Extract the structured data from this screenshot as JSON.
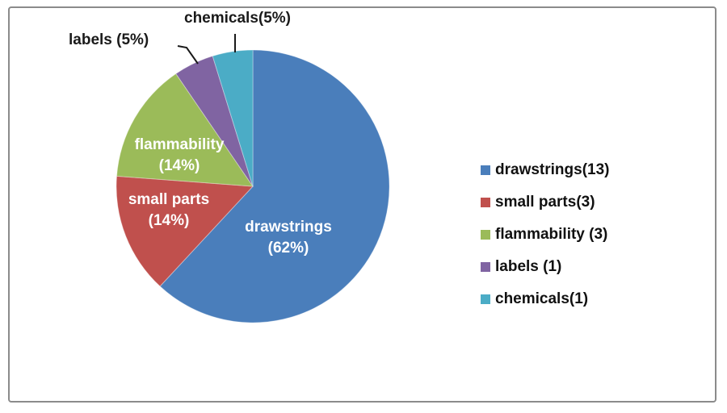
{
  "chart_data": {
    "type": "pie",
    "title": "",
    "categories": [
      "drawstrings",
      "small parts",
      "flammability",
      "labels",
      "chemicals"
    ],
    "values": [
      13,
      3,
      3,
      1,
      1
    ],
    "percentages": [
      62,
      14,
      14,
      5,
      5
    ],
    "colors": [
      "#4A7EBB",
      "#C0504D",
      "#9BBB59",
      "#8064A2",
      "#4BACC6"
    ],
    "start_angle_deg": 0,
    "direction": "clockwise",
    "legend_position": "right"
  },
  "slice_labels": {
    "flammability": {
      "name": "flammability",
      "pct": "(14%)"
    },
    "small_parts": {
      "name": "small parts",
      "pct": "(14%)"
    },
    "drawstrings": {
      "name": "drawstrings",
      "pct": "(62%)"
    }
  },
  "callouts": {
    "labels": "labels (5%)",
    "chemicals": "chemicals(5%)"
  },
  "legend": {
    "items": [
      {
        "label": "drawstrings(13)",
        "color": "#4A7EBB"
      },
      {
        "label": "small parts(3)",
        "color": "#C0504D"
      },
      {
        "label": "flammability (3)",
        "color": "#9BBB59"
      },
      {
        "label": "labels (1)",
        "color": "#8064A2"
      },
      {
        "label": "chemicals(1)",
        "color": "#4BACC6"
      }
    ]
  }
}
